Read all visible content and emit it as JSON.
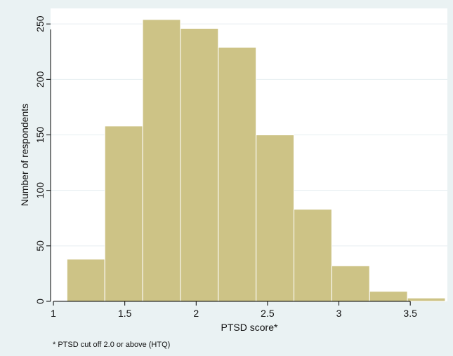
{
  "chart_data": {
    "type": "bar",
    "subtype": "histogram",
    "xlabel": "PTSD score*",
    "ylabel": "Number of respondents",
    "note": "* PTSD cut off 2.0 or above (HTQ)",
    "xlim": [
      0.98,
      3.76
    ],
    "ylim": [
      0,
      264
    ],
    "xticks": [
      1,
      1.5,
      2,
      2.5,
      3,
      3.5
    ],
    "xtick_labels": [
      "1",
      "1.5",
      "2",
      "2.5",
      "3",
      "3.5"
    ],
    "yticks": [
      0,
      50,
      100,
      150,
      200,
      250
    ],
    "ytick_labels": [
      "0",
      "50",
      "100",
      "150",
      "200",
      "250"
    ],
    "grid": true,
    "colors": {
      "bar_fill": "#cdc386",
      "bar_edge": "#ffffff",
      "plot_bg": "#ffffff",
      "outer_bg": "#eaf2f3",
      "grid": "#e6eef0"
    },
    "bins": [
      {
        "x0": 1.095,
        "x1": 1.36,
        "value": 38
      },
      {
        "x0": 1.36,
        "x1": 1.625,
        "value": 158
      },
      {
        "x0": 1.625,
        "x1": 1.89,
        "value": 254
      },
      {
        "x0": 1.89,
        "x1": 2.155,
        "value": 246
      },
      {
        "x0": 2.155,
        "x1": 2.42,
        "value": 229
      },
      {
        "x0": 2.42,
        "x1": 2.685,
        "value": 150
      },
      {
        "x0": 2.685,
        "x1": 2.95,
        "value": 83
      },
      {
        "x0": 2.95,
        "x1": 3.215,
        "value": 32
      },
      {
        "x0": 3.215,
        "x1": 3.48,
        "value": 9
      },
      {
        "x0": 3.48,
        "x1": 3.745,
        "value": 3
      }
    ]
  }
}
